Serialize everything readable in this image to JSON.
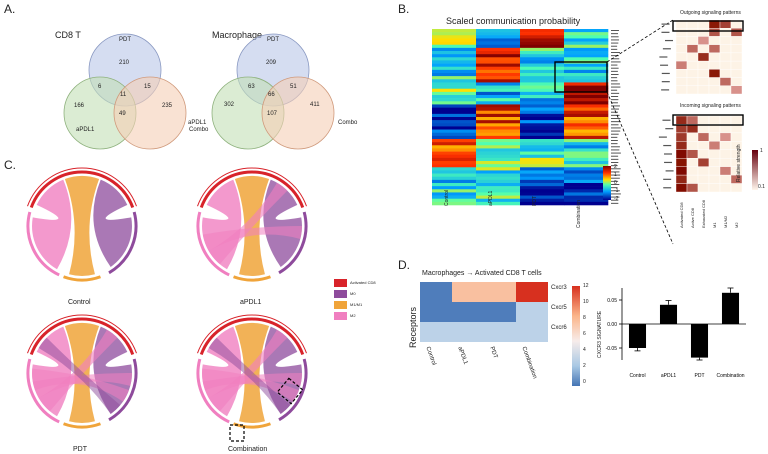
{
  "panels": {
    "a": "A.",
    "b": "B.",
    "c": "C.",
    "d": "D."
  },
  "venn": [
    {
      "title": "CD8 T",
      "sets": [
        "PDT",
        "aPDL1",
        "Combo"
      ],
      "regions": {
        "pdt": "210",
        "apdl1": "166",
        "combo": "235",
        "pdt_apdl1": "6",
        "pdt_combo": "15",
        "apdl1_combo": "49",
        "all": "11"
      }
    },
    {
      "title": "Macrophage",
      "sets": [
        "PDT",
        "aPDL1",
        "Combo"
      ],
      "regions": {
        "pdt": "209",
        "apdl1": "302",
        "combo": "411",
        "pdt_apdl1": "63",
        "pdt_combo": "51",
        "apdl1_combo": "107",
        "all": "66"
      }
    }
  ],
  "heatmap_b": {
    "title": "Scaled communication probability",
    "columns": [
      "Control",
      "aPDL1",
      "PDT",
      "Combination"
    ],
    "scale_ticks": [
      "2",
      "1",
      "0",
      "-1",
      "-2"
    ]
  },
  "outgoing": {
    "title": "Outgoing signaling patterns"
  },
  "incoming": {
    "title": "Incoming signaling patterns",
    "strength_label": "Relative strength",
    "max": "1",
    "min": "0.1",
    "cells": [
      "Activated CD8",
      "Active CD8",
      "Exhausted CD8",
      "M1",
      "M1/M2",
      "M2"
    ]
  },
  "chord": {
    "legend": [
      "Activated CD8",
      "M0",
      "M1/M1",
      "M2"
    ],
    "legend_colors": [
      "#d8232a",
      "#8e4b9c",
      "#f0a43a",
      "#f07fc0"
    ],
    "labels": [
      "Control",
      "aPDL1",
      "PDT",
      "Combination"
    ]
  },
  "panel_d": {
    "title": "Macrophages → Activated CD8 T cells",
    "ylabel": "Receptors",
    "rows": [
      "Cxcr3",
      "Cxcr5",
      "Cxcr6"
    ],
    "columns": [
      "Control",
      "aPDL1",
      "PDT",
      "Combination"
    ],
    "ticks": [
      "12",
      "10",
      "8",
      "6",
      "4",
      "2",
      "0"
    ]
  },
  "chart_data": {
    "type": "bar",
    "categories": [
      "Control",
      "aPDL1",
      "PDT",
      "Combination"
    ],
    "values": [
      -0.05,
      0.04,
      -0.07,
      0.065
    ],
    "errors": [
      0.006,
      0.009,
      0.005,
      0.01
    ],
    "ylabel": "CXCR3 SIGNATURE",
    "ylim": [
      -0.075,
      0.075
    ],
    "yticks": [
      "0.05",
      "0.00",
      "-0.05"
    ]
  }
}
